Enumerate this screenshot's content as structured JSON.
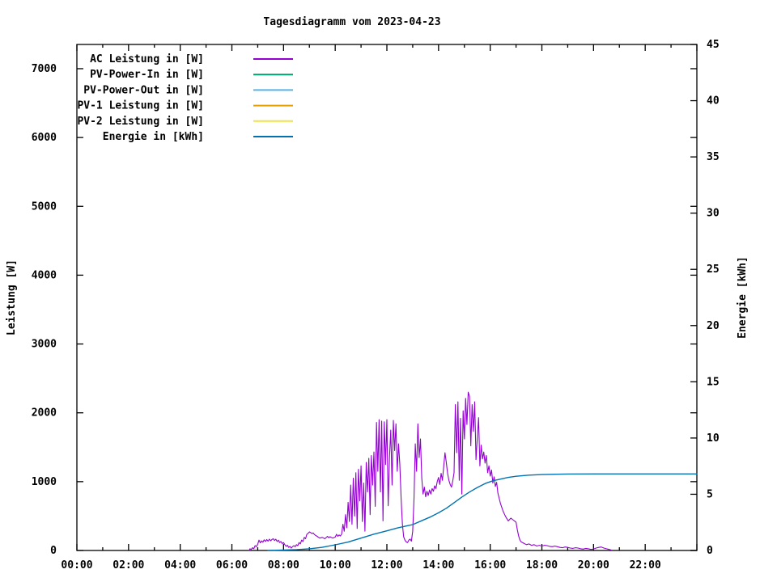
{
  "window": {
    "background": "#ffffff"
  },
  "chart_data": {
    "type": "line",
    "title": "Tagesdiagramm vom 2023-04-23",
    "xlabel": "",
    "ylabel": "Leistung [W]",
    "y2label": "Energie [kWh]",
    "grid": false,
    "legend_position": "top-left-inside",
    "x_range_hours": [
      0,
      24
    ],
    "ylim": [
      0,
      7352
    ],
    "y2lim": [
      0,
      45
    ],
    "y_ticks": [
      0,
      1000,
      2000,
      3000,
      4000,
      5000,
      6000,
      7000
    ],
    "y2_ticks": [
      0,
      5,
      10,
      15,
      20,
      25,
      30,
      35,
      40,
      45
    ],
    "x_minor_step_hours": 1,
    "x_ticks": [
      {
        "hour": 0,
        "label": "00:00"
      },
      {
        "hour": 2,
        "label": "02:00"
      },
      {
        "hour": 4,
        "label": "04:00"
      },
      {
        "hour": 6,
        "label": "06:00"
      },
      {
        "hour": 8,
        "label": "08:00"
      },
      {
        "hour": 10,
        "label": "10:00"
      },
      {
        "hour": 12,
        "label": "12:00"
      },
      {
        "hour": 14,
        "label": "14:00"
      },
      {
        "hour": 16,
        "label": "16:00"
      },
      {
        "hour": 18,
        "label": "18:00"
      },
      {
        "hour": 20,
        "label": "20:00"
      },
      {
        "hour": 22,
        "label": "22:00"
      }
    ],
    "series": [
      {
        "name": "AC Leistung in [W]",
        "color": "#9400D3",
        "axis": "y1",
        "points": [
          [
            6.67,
            0
          ],
          [
            6.7,
            25
          ],
          [
            6.75,
            15
          ],
          [
            6.8,
            40
          ],
          [
            6.85,
            25
          ],
          [
            6.9,
            70
          ],
          [
            6.95,
            55
          ],
          [
            7.0,
            90
          ],
          [
            7.05,
            150
          ],
          [
            7.1,
            110
          ],
          [
            7.15,
            140
          ],
          [
            7.2,
            120
          ],
          [
            7.25,
            155
          ],
          [
            7.3,
            130
          ],
          [
            7.35,
            160
          ],
          [
            7.4,
            135
          ],
          [
            7.45,
            165
          ],
          [
            7.5,
            140
          ],
          [
            7.55,
            160
          ],
          [
            7.6,
            170
          ],
          [
            7.65,
            145
          ],
          [
            7.7,
            165
          ],
          [
            7.75,
            130
          ],
          [
            7.8,
            150
          ],
          [
            7.85,
            115
          ],
          [
            7.9,
            130
          ],
          [
            7.95,
            100
          ],
          [
            8.0,
            115
          ],
          [
            8.05,
            85
          ],
          [
            8.1,
            60
          ],
          [
            8.15,
            75
          ],
          [
            8.2,
            45
          ],
          [
            8.25,
            60
          ],
          [
            8.3,
            35
          ],
          [
            8.35,
            55
          ],
          [
            8.4,
            70
          ],
          [
            8.45,
            55
          ],
          [
            8.5,
            85
          ],
          [
            8.55,
            70
          ],
          [
            8.6,
            115
          ],
          [
            8.65,
            95
          ],
          [
            8.7,
            150
          ],
          [
            8.75,
            130
          ],
          [
            8.8,
            190
          ],
          [
            8.85,
            170
          ],
          [
            8.9,
            235
          ],
          [
            8.95,
            250
          ],
          [
            9.0,
            270
          ],
          [
            9.05,
            260
          ],
          [
            9.1,
            245
          ],
          [
            9.15,
            255
          ],
          [
            9.2,
            230
          ],
          [
            9.3,
            205
          ],
          [
            9.4,
            180
          ],
          [
            9.5,
            190
          ],
          [
            9.6,
            170
          ],
          [
            9.7,
            205
          ],
          [
            9.75,
            185
          ],
          [
            9.8,
            200
          ],
          [
            9.9,
            180
          ],
          [
            10.0,
            195
          ],
          [
            10.05,
            235
          ],
          [
            10.1,
            205
          ],
          [
            10.15,
            225
          ],
          [
            10.2,
            210
          ],
          [
            10.25,
            240
          ],
          [
            10.3,
            380
          ],
          [
            10.35,
            280
          ],
          [
            10.4,
            520
          ],
          [
            10.45,
            330
          ],
          [
            10.5,
            700
          ],
          [
            10.55,
            420
          ],
          [
            10.6,
            950
          ],
          [
            10.65,
            380
          ],
          [
            10.7,
            1050
          ],
          [
            10.75,
            500
          ],
          [
            10.8,
            1130
          ],
          [
            10.85,
            320
          ],
          [
            10.9,
            1180
          ],
          [
            10.95,
            720
          ],
          [
            11.0,
            1230
          ],
          [
            11.05,
            420
          ],
          [
            11.1,
            980
          ],
          [
            11.15,
            280
          ],
          [
            11.2,
            1280
          ],
          [
            11.25,
            850
          ],
          [
            11.3,
            1340
          ],
          [
            11.35,
            520
          ],
          [
            11.4,
            1380
          ],
          [
            11.45,
            950
          ],
          [
            11.5,
            1430
          ],
          [
            11.55,
            640
          ],
          [
            11.6,
            1860
          ],
          [
            11.65,
            1150
          ],
          [
            11.7,
            1900
          ],
          [
            11.75,
            850
          ],
          [
            11.8,
            1880
          ],
          [
            11.85,
            430
          ],
          [
            11.9,
            1870
          ],
          [
            11.95,
            1250
          ],
          [
            12.0,
            1900
          ],
          [
            12.05,
            650
          ],
          [
            12.1,
            1350
          ],
          [
            12.15,
            1750
          ],
          [
            12.2,
            950
          ],
          [
            12.25,
            1890
          ],
          [
            12.3,
            1450
          ],
          [
            12.35,
            1840
          ],
          [
            12.4,
            1150
          ],
          [
            12.45,
            1550
          ],
          [
            12.5,
            1250
          ],
          [
            12.55,
            750
          ],
          [
            12.6,
            380
          ],
          [
            12.65,
            200
          ],
          [
            12.7,
            150
          ],
          [
            12.75,
            125
          ],
          [
            12.8,
            115
          ],
          [
            12.85,
            150
          ],
          [
            12.9,
            165
          ],
          [
            12.95,
            135
          ],
          [
            13.0,
            280
          ],
          [
            13.05,
            750
          ],
          [
            13.1,
            1550
          ],
          [
            13.15,
            1150
          ],
          [
            13.2,
            1840
          ],
          [
            13.25,
            1350
          ],
          [
            13.3,
            1620
          ],
          [
            13.35,
            1050
          ],
          [
            13.4,
            820
          ],
          [
            13.45,
            920
          ],
          [
            13.5,
            780
          ],
          [
            13.55,
            860
          ],
          [
            13.6,
            800
          ],
          [
            13.65,
            880
          ],
          [
            13.7,
            820
          ],
          [
            13.75,
            900
          ],
          [
            13.8,
            860
          ],
          [
            13.85,
            940
          ],
          [
            13.9,
            900
          ],
          [
            13.95,
            1000
          ],
          [
            14.0,
            1060
          ],
          [
            14.05,
            960
          ],
          [
            14.1,
            1120
          ],
          [
            14.15,
            1020
          ],
          [
            14.2,
            1220
          ],
          [
            14.25,
            1420
          ],
          [
            14.3,
            1280
          ],
          [
            14.35,
            1120
          ],
          [
            14.4,
            1020
          ],
          [
            14.45,
            960
          ],
          [
            14.5,
            920
          ],
          [
            14.55,
            1010
          ],
          [
            14.6,
            1130
          ],
          [
            14.65,
            2120
          ],
          [
            14.7,
            1420
          ],
          [
            14.75,
            2160
          ],
          [
            14.8,
            1020
          ],
          [
            14.85,
            1920
          ],
          [
            14.9,
            820
          ],
          [
            14.95,
            2030
          ],
          [
            15.0,
            1620
          ],
          [
            15.05,
            2210
          ],
          [
            15.1,
            1830
          ],
          [
            15.15,
            2300
          ],
          [
            15.2,
            2240
          ],
          [
            15.25,
            1520
          ],
          [
            15.3,
            2120
          ],
          [
            15.35,
            1730
          ],
          [
            15.4,
            2160
          ],
          [
            15.45,
            1320
          ],
          [
            15.5,
            1630
          ],
          [
            15.55,
            1930
          ],
          [
            15.6,
            1230
          ],
          [
            15.65,
            1530
          ],
          [
            15.7,
            1330
          ],
          [
            15.75,
            1430
          ],
          [
            15.8,
            1270
          ],
          [
            15.85,
            1380
          ],
          [
            15.9,
            1130
          ],
          [
            15.95,
            1230
          ],
          [
            16.0,
            1080
          ],
          [
            16.05,
            1170
          ],
          [
            16.1,
            980
          ],
          [
            16.15,
            1070
          ],
          [
            16.2,
            930
          ],
          [
            16.25,
            990
          ],
          [
            16.3,
            830
          ],
          [
            16.4,
            680
          ],
          [
            16.5,
            570
          ],
          [
            16.6,
            490
          ],
          [
            16.7,
            430
          ],
          [
            16.8,
            470
          ],
          [
            16.9,
            440
          ],
          [
            17.0,
            410
          ],
          [
            17.05,
            300
          ],
          [
            17.1,
            210
          ],
          [
            17.15,
            150
          ],
          [
            17.2,
            125
          ],
          [
            17.3,
            105
          ],
          [
            17.4,
            85
          ],
          [
            17.5,
            95
          ],
          [
            17.6,
            75
          ],
          [
            17.7,
            85
          ],
          [
            17.8,
            65
          ],
          [
            17.9,
            75
          ],
          [
            18.0,
            65
          ],
          [
            18.1,
            75
          ],
          [
            18.2,
            70
          ],
          [
            18.3,
            60
          ],
          [
            18.4,
            55
          ],
          [
            18.5,
            65
          ],
          [
            18.6,
            55
          ],
          [
            18.7,
            45
          ],
          [
            18.8,
            40
          ],
          [
            18.9,
            50
          ],
          [
            19.0,
            45
          ],
          [
            19.1,
            35
          ],
          [
            19.2,
            30
          ],
          [
            19.3,
            40
          ],
          [
            19.4,
            35
          ],
          [
            19.5,
            25
          ],
          [
            19.6,
            20
          ],
          [
            19.7,
            30
          ],
          [
            19.8,
            25
          ],
          [
            19.9,
            15
          ],
          [
            20.0,
            20
          ],
          [
            20.1,
            35
          ],
          [
            20.2,
            45
          ],
          [
            20.3,
            50
          ],
          [
            20.4,
            35
          ],
          [
            20.5,
            25
          ],
          [
            20.6,
            15
          ],
          [
            20.7,
            5
          ]
        ]
      },
      {
        "name": "PV-Power-In in [W]",
        "color": "#009E73",
        "axis": "y1",
        "points": []
      },
      {
        "name": "PV-Power-Out in [W]",
        "color": "#56B4E9",
        "axis": "y1",
        "points": []
      },
      {
        "name": "PV-1 Leistung in [W]",
        "color": "#E69F00",
        "axis": "y1",
        "points": []
      },
      {
        "name": "PV-2 Leistung in [W]",
        "color": "#F0E442",
        "axis": "y1",
        "points": []
      },
      {
        "name": "Energie in [kWh]",
        "color": "#0072B2",
        "axis": "y2",
        "points": [
          [
            7.4,
            0
          ],
          [
            8.0,
            0.04
          ],
          [
            8.5,
            0.08
          ],
          [
            9.0,
            0.15
          ],
          [
            9.5,
            0.28
          ],
          [
            10.0,
            0.5
          ],
          [
            10.5,
            0.75
          ],
          [
            11.0,
            1.1
          ],
          [
            11.5,
            1.45
          ],
          [
            12.0,
            1.75
          ],
          [
            12.4,
            2.0
          ],
          [
            12.7,
            2.15
          ],
          [
            13.0,
            2.3
          ],
          [
            13.3,
            2.6
          ],
          [
            13.7,
            3.0
          ],
          [
            14.0,
            3.35
          ],
          [
            14.3,
            3.75
          ],
          [
            14.6,
            4.25
          ],
          [
            14.9,
            4.75
          ],
          [
            15.2,
            5.2
          ],
          [
            15.5,
            5.6
          ],
          [
            15.8,
            5.95
          ],
          [
            16.1,
            6.2
          ],
          [
            16.4,
            6.35
          ],
          [
            16.7,
            6.5
          ],
          [
            17.0,
            6.6
          ],
          [
            17.5,
            6.7
          ],
          [
            18.0,
            6.75
          ],
          [
            18.5,
            6.78
          ],
          [
            19.0,
            6.8
          ],
          [
            20.0,
            6.81
          ],
          [
            22.0,
            6.81
          ],
          [
            24.0,
            6.81
          ]
        ]
      }
    ]
  }
}
